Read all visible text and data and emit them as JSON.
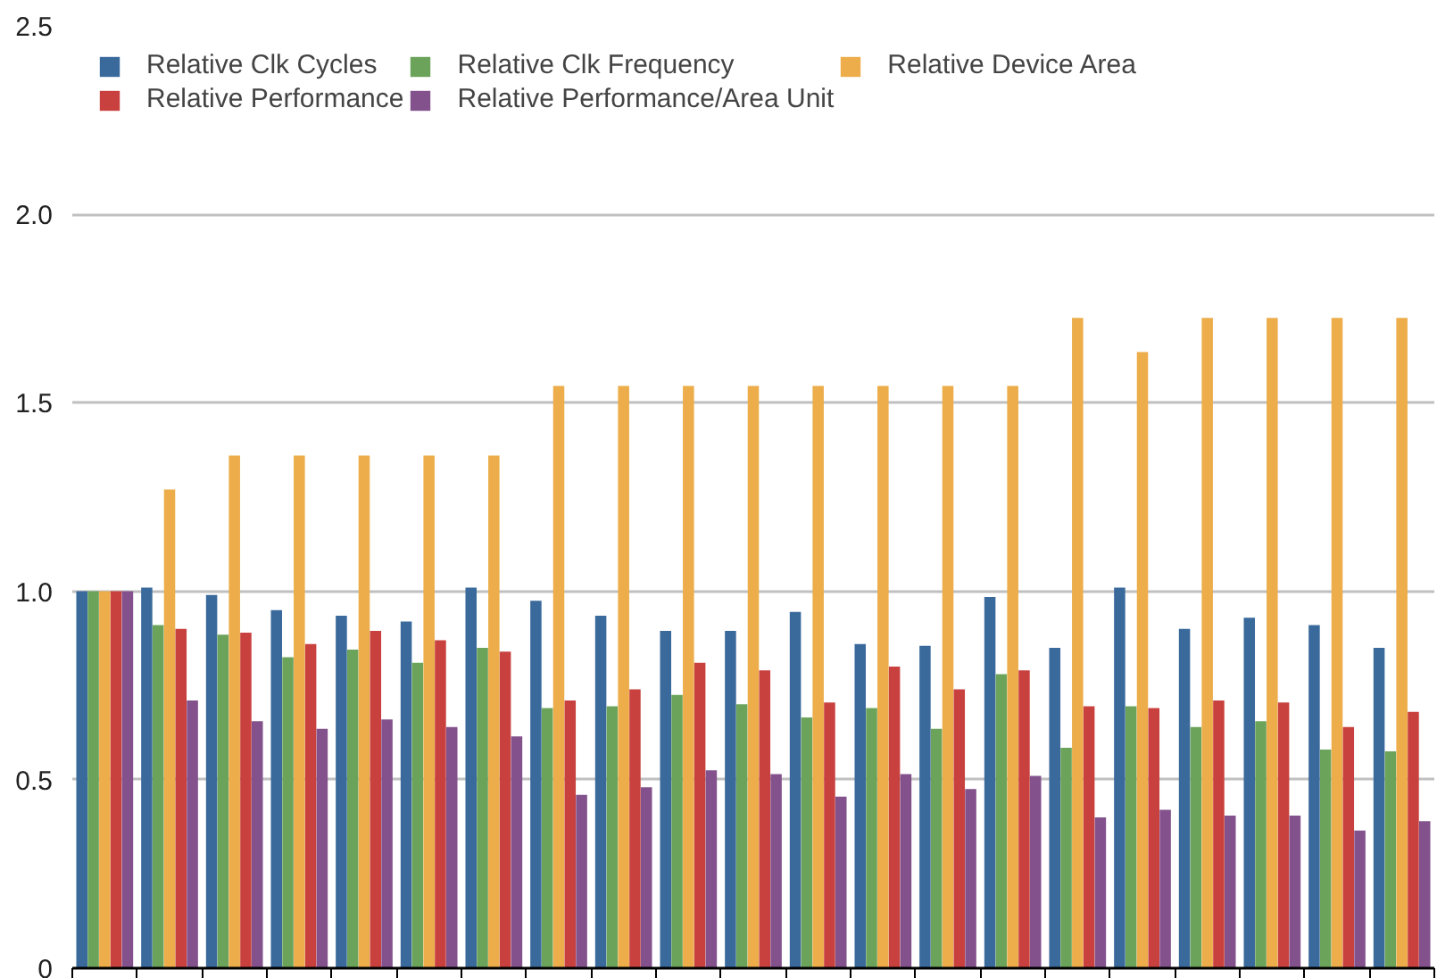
{
  "chart_data": {
    "type": "bar",
    "categories": [
      null,
      null,
      null,
      null,
      null,
      null,
      null,
      null,
      null,
      null,
      null,
      null,
      null,
      null,
      null,
      null,
      null,
      null,
      null,
      null,
      null
    ],
    "series": [
      {
        "name": "Relative Clk Cycles",
        "color": "#3a6a9c",
        "values": [
          1.0,
          1.01,
          0.99,
          0.95,
          0.935,
          0.92,
          1.01,
          0.975,
          0.935,
          0.895,
          0.895,
          0.945,
          0.86,
          0.855,
          0.985,
          0.85,
          1.01,
          0.9,
          0.93,
          0.91,
          0.85
        ]
      },
      {
        "name": "Relative Clk Frequency",
        "color": "#6ba35a",
        "values": [
          1.0,
          0.91,
          0.885,
          0.825,
          0.845,
          0.81,
          0.85,
          0.69,
          0.695,
          0.725,
          0.7,
          0.665,
          0.69,
          0.635,
          0.78,
          0.585,
          0.695,
          0.64,
          0.655,
          0.58,
          0.575
        ]
      },
      {
        "name": "Relative Device Area",
        "color": "#ecad4a",
        "values": [
          1.0,
          1.27,
          1.36,
          1.36,
          1.36,
          1.36,
          1.36,
          1.545,
          1.545,
          1.545,
          1.545,
          1.545,
          1.545,
          1.545,
          1.545,
          1.725,
          1.635,
          1.725,
          1.725,
          1.725,
          1.725
        ]
      },
      {
        "name": "Relative Performance",
        "color": "#c9413e",
        "values": [
          1.0,
          0.9,
          0.89,
          0.86,
          0.895,
          0.87,
          0.84,
          0.71,
          0.74,
          0.81,
          0.79,
          0.705,
          0.8,
          0.74,
          0.79,
          0.695,
          0.69,
          0.71,
          0.705,
          0.64,
          0.68
        ]
      },
      {
        "name": "Relative Performance/Area Unit",
        "color": "#83528d",
        "values": [
          1.0,
          0.71,
          0.655,
          0.635,
          0.66,
          0.64,
          0.615,
          0.46,
          0.48,
          0.525,
          0.515,
          0.455,
          0.515,
          0.475,
          0.51,
          0.4,
          0.42,
          0.405,
          0.405,
          0.365,
          0.39
        ]
      }
    ],
    "ylim": [
      0,
      2.5
    ],
    "yticks": [
      0,
      0.5,
      {
        "value": 1.0,
        "label": "1.0"
      },
      {
        "value": 1.5,
        "label": "1.5"
      },
      {
        "value": 2.0,
        "label": "2.0"
      },
      {
        "value": 2.5,
        "label": "2.5"
      }
    ],
    "grid": "y",
    "legend": "top left"
  }
}
